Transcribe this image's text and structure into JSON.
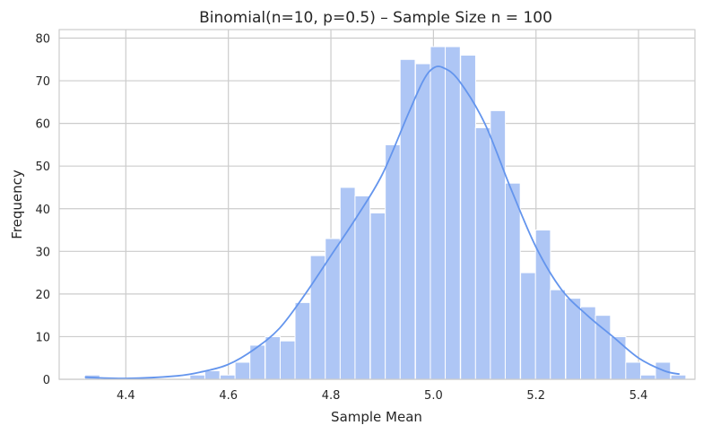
{
  "chart_data": {
    "type": "bar",
    "title": "Binomial(n=10, p=0.5) – Sample Size n = 100",
    "xlabel": "Sample Mean",
    "ylabel": "Frequency",
    "xlim": [
      4.27,
      5.51
    ],
    "ylim": [
      0,
      82
    ],
    "xticks": [
      4.4,
      4.6,
      4.8,
      5.0,
      5.2,
      5.4
    ],
    "yticks": [
      0,
      10,
      20,
      30,
      40,
      50,
      60,
      70,
      80
    ],
    "grid": true,
    "bin_width": 0.0293,
    "bins": [
      {
        "x0": 4.32,
        "count": 1
      },
      {
        "x0": 4.349,
        "count": 0
      },
      {
        "x0": 4.379,
        "count": 0
      },
      {
        "x0": 4.408,
        "count": 0
      },
      {
        "x0": 4.437,
        "count": 0
      },
      {
        "x0": 4.467,
        "count": 0
      },
      {
        "x0": 4.496,
        "count": 0
      },
      {
        "x0": 4.525,
        "count": 1
      },
      {
        "x0": 4.554,
        "count": 2
      },
      {
        "x0": 4.584,
        "count": 1
      },
      {
        "x0": 4.613,
        "count": 4
      },
      {
        "x0": 4.642,
        "count": 8
      },
      {
        "x0": 4.672,
        "count": 10
      },
      {
        "x0": 4.701,
        "count": 9
      },
      {
        "x0": 4.73,
        "count": 18
      },
      {
        "x0": 4.76,
        "count": 29
      },
      {
        "x0": 4.789,
        "count": 33
      },
      {
        "x0": 4.818,
        "count": 45
      },
      {
        "x0": 4.847,
        "count": 43
      },
      {
        "x0": 4.877,
        "count": 39
      },
      {
        "x0": 4.906,
        "count": 55
      },
      {
        "x0": 4.935,
        "count": 75
      },
      {
        "x0": 4.965,
        "count": 74
      },
      {
        "x0": 4.994,
        "count": 78
      },
      {
        "x0": 5.023,
        "count": 78
      },
      {
        "x0": 5.053,
        "count": 76
      },
      {
        "x0": 5.082,
        "count": 59
      },
      {
        "x0": 5.111,
        "count": 63
      },
      {
        "x0": 5.14,
        "count": 46
      },
      {
        "x0": 5.17,
        "count": 25
      },
      {
        "x0": 5.199,
        "count": 35
      },
      {
        "x0": 5.228,
        "count": 21
      },
      {
        "x0": 5.258,
        "count": 19
      },
      {
        "x0": 5.287,
        "count": 17
      },
      {
        "x0": 5.316,
        "count": 15
      },
      {
        "x0": 5.346,
        "count": 10
      },
      {
        "x0": 5.375,
        "count": 4
      },
      {
        "x0": 5.404,
        "count": 1
      },
      {
        "x0": 5.433,
        "count": 4
      },
      {
        "x0": 5.463,
        "count": 1
      }
    ],
    "kde": {
      "x": [
        4.32,
        4.4,
        4.5,
        4.55,
        4.6,
        4.65,
        4.7,
        4.75,
        4.8,
        4.85,
        4.9,
        4.95,
        4.98,
        5.0,
        5.02,
        5.05,
        5.1,
        5.15,
        5.2,
        5.25,
        5.3,
        5.35,
        5.4,
        5.45,
        5.48
      ],
      "y": [
        0.5,
        0.2,
        0.8,
        1.8,
        3.5,
        7,
        12,
        20,
        29,
        38,
        48,
        62,
        70,
        73,
        73,
        70,
        60,
        45,
        31,
        21,
        15,
        10,
        5,
        2,
        1.2
      ]
    },
    "colors": {
      "bar": "#aec6f5",
      "bar_edge": "#ffffff",
      "kde": "#6495ed",
      "grid": "#cccccc",
      "axis_edge": "#cccccc"
    }
  }
}
